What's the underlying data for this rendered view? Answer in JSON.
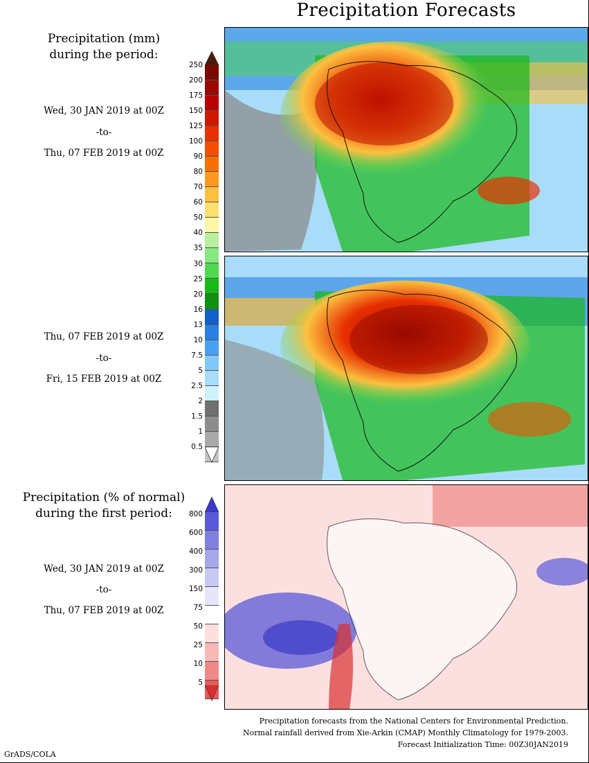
{
  "title": "Precipitation Forecasts",
  "panel1": {
    "label_line1": "Precipitation (mm)",
    "label_line2": "during the period:",
    "start": "Wed, 30 JAN 2019 at 00Z",
    "sep": "-to-",
    "end": "Thu, 07 FEB 2019 at 00Z"
  },
  "panel2": {
    "start": "Thu, 07 FEB 2019 at 00Z",
    "sep": "-to-",
    "end": "Fri, 15 FEB 2019 at 00Z"
  },
  "panel3": {
    "label_line1": "Precipitation (% of normal)",
    "label_line2": "during the first period:",
    "start": "Wed, 30 JAN 2019 at 00Z",
    "sep": "-to-",
    "end": "Thu, 07 FEB 2019 at 00Z"
  },
  "mm_scale": {
    "ticks": [
      "250",
      "200",
      "175",
      "150",
      "125",
      "100",
      "90",
      "80",
      "70",
      "60",
      "50",
      "40",
      "35",
      "30",
      "25",
      "20",
      "16",
      "13",
      "10",
      "7.5",
      "5",
      "2.5",
      "2",
      "1.5",
      "1",
      "0.5"
    ],
    "colors": [
      "#4a1a0a",
      "#7a0a00",
      "#9a0a00",
      "#b80000",
      "#d01800",
      "#e83000",
      "#f05000",
      "#f87000",
      "#fc9a20",
      "#fcc040",
      "#fde070",
      "#fff6a8",
      "#b8f0a0",
      "#88e880",
      "#50d850",
      "#18b818",
      "#109010",
      "#1060c8",
      "#2a80e0",
      "#4aa0f0",
      "#80c8f8",
      "#a8dcf8",
      "#d0f0fc",
      "#707070",
      "#8c8c8c",
      "#a8a8a8",
      "#c4c4c4",
      "#ffffff"
    ]
  },
  "pct_scale": {
    "ticks": [
      "800",
      "600",
      "400",
      "300",
      "150",
      "75",
      "50",
      "25",
      "10",
      "5"
    ],
    "colors": [
      "#3a3ac8",
      "#5a5ad8",
      "#8080e0",
      "#a6a6ea",
      "#c8c8f2",
      "#e6e6fa",
      "#ffffff",
      "#fce0e0",
      "#f8b8b8",
      "#f08888",
      "#e85a5a",
      "#d83030"
    ]
  },
  "footnotes": [
    "Precipitation forecasts from the National Centers for Environmental Prediction.",
    "Normal rainfall derived from Xie-Arkin (CMAP) Monthly Climatology for 1979-2003.",
    "Forecast Initialization Time: 00Z30JAN2019"
  ],
  "credit": "GrADS/COLA"
}
